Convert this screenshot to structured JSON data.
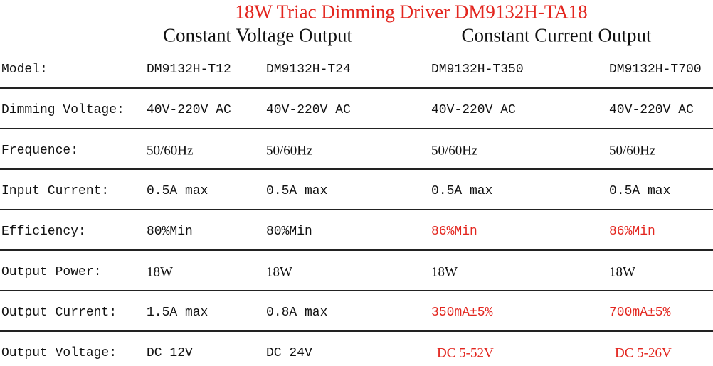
{
  "header": {
    "title": "18W Triac Dimming Driver DM9132H-TA18",
    "groups": [
      "Constant Voltage Output",
      "Constant Current Output"
    ]
  },
  "table": {
    "rows": [
      [
        "Model:",
        "DM9132H-T12",
        "DM9132H-T24",
        "DM9132H-T350",
        "DM9132H-T700"
      ],
      [
        "Dimming Voltage:",
        "40V-220V AC",
        "40V-220V AC",
        "40V-220V AC",
        "40V-220V AC"
      ],
      [
        "Frequence:",
        "50/60Hz",
        "50/60Hz",
        "50/60Hz",
        "50/60Hz"
      ],
      [
        "Input Current:",
        "0.5A max",
        "0.5A max",
        "0.5A max",
        "0.5A max"
      ],
      [
        "Efficiency:",
        "80%Min",
        "80%Min",
        "86%Min",
        "86%Min"
      ],
      [
        "Output Power:",
        "18W",
        "18W",
        "18W",
        "18W"
      ],
      [
        "Output Current:",
        "1.5A max",
        "0.8A max",
        "350mA±5%",
        "700mA±5%"
      ],
      [
        "Output Voltage:",
        "DC 12V",
        "DC 24V",
        "DC 5-52V",
        "DC 5-26V"
      ]
    ]
  }
}
